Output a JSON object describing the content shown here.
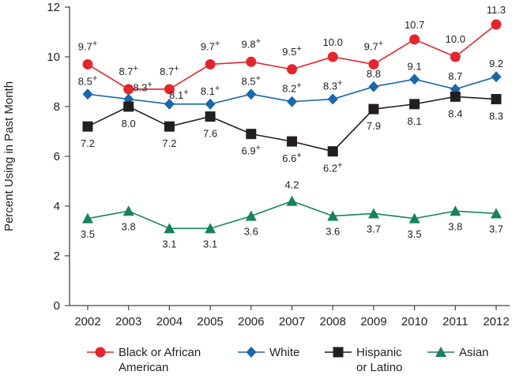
{
  "chart_data": {
    "type": "line",
    "title": "",
    "xlabel": "",
    "ylabel": "Percent Using in Past Month",
    "ylim": [
      0,
      12
    ],
    "yticks": [
      0,
      2,
      4,
      6,
      8,
      10,
      12
    ],
    "x": [
      "2002",
      "2003",
      "2004",
      "2005",
      "2006",
      "2007",
      "2008",
      "2009",
      "2010",
      "2011",
      "2012"
    ],
    "legend_position": "bottom",
    "grid": false,
    "series": [
      {
        "name": "Black or African American",
        "name_lines": [
          "Black or African",
          "American"
        ],
        "color": "#e3262b",
        "marker": "circle",
        "values": [
          9.7,
          8.7,
          8.7,
          9.7,
          9.8,
          9.5,
          10.0,
          9.7,
          10.7,
          10.0,
          11.3
        ],
        "labels": [
          "9.7+",
          "8.7+",
          "8.7+",
          "9.7+",
          "9.8+",
          "9.5+",
          "10.0",
          "9.7+",
          "10.7",
          "10.0",
          "11.3"
        ]
      },
      {
        "name": "White",
        "name_lines": [
          "White"
        ],
        "color": "#1a67a9",
        "marker": "diamond",
        "values": [
          8.5,
          8.3,
          8.1,
          8.1,
          8.5,
          8.2,
          8.3,
          8.8,
          9.1,
          8.7,
          9.2
        ],
        "labels": [
          "8.5+",
          "8.3+",
          "8.1+",
          "8.1+",
          "8.5+",
          "8.2+",
          "8.3+",
          "8.8",
          "9.1",
          "8.7",
          "9.2"
        ]
      },
      {
        "name": "Hispanic or Latino",
        "name_lines": [
          "Hispanic",
          "or Latino"
        ],
        "color": "#231f20",
        "marker": "square",
        "values": [
          7.2,
          8.0,
          7.2,
          7.6,
          6.9,
          6.6,
          6.2,
          7.9,
          8.1,
          8.4,
          8.3
        ],
        "labels": [
          "7.2",
          "8.0",
          "7.2",
          "7.6",
          "6.9+",
          "6.6+",
          "6.2+",
          "7.9",
          "8.1",
          "8.4",
          "8.3"
        ]
      },
      {
        "name": "Asian",
        "name_lines": [
          "Asian"
        ],
        "color": "#16825d",
        "marker": "triangle",
        "values": [
          3.5,
          3.8,
          3.1,
          3.1,
          3.6,
          4.2,
          3.6,
          3.7,
          3.5,
          3.8,
          3.7
        ],
        "labels": [
          "3.5",
          "3.8",
          "3.1",
          "3.1",
          "3.6",
          "4.2",
          "3.6",
          "3.7",
          "3.5",
          "3.8",
          "3.7"
        ]
      }
    ]
  }
}
